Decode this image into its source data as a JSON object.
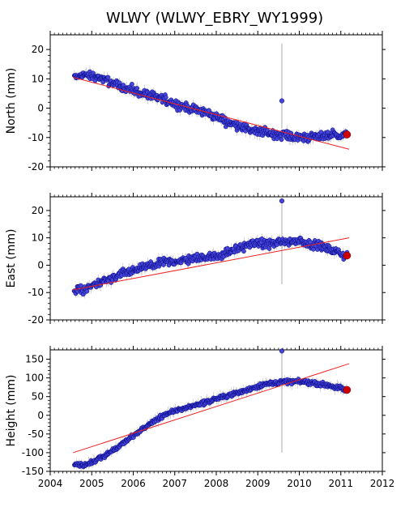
{
  "chart_data": {
    "type": "scatter",
    "title": "WLWY (WLWY_EBRY_WY1999)",
    "x_axis": {
      "range": [
        2004,
        2012
      ],
      "tick_labels": [
        "2004",
        "2005",
        "2006",
        "2007",
        "2008",
        "2009",
        "2010",
        "2011",
        "2012"
      ]
    },
    "colors": {
      "points": "#4646d8",
      "point_edge": "#000080",
      "trend": "#ee2222",
      "latest": "#cc0000",
      "error_bars": "#999999",
      "outlier_bar": "#aaaaaa"
    },
    "panels": [
      {
        "ylabel": "North (mm)",
        "ylim": [
          -20,
          25
        ],
        "yticks": [
          -20,
          -10,
          0,
          10,
          20
        ],
        "tick_labels": [
          "-20",
          "-10",
          "0",
          "10",
          "20"
        ],
        "series_points": [
          [
            2004.58,
            10.5
          ],
          [
            2004.8,
            11.5
          ],
          [
            2005.0,
            11.0
          ],
          [
            2005.25,
            10.0
          ],
          [
            2005.5,
            8.5
          ],
          [
            2005.75,
            7.5
          ],
          [
            2006.0,
            6.0
          ],
          [
            2006.25,
            5.0
          ],
          [
            2006.5,
            4.0
          ],
          [
            2006.75,
            3.0
          ],
          [
            2007.0,
            1.5
          ],
          [
            2007.25,
            0.5
          ],
          [
            2007.5,
            -0.5
          ],
          [
            2007.75,
            -1.5
          ],
          [
            2008.0,
            -3.0
          ],
          [
            2008.25,
            -4.5
          ],
          [
            2008.5,
            -5.5
          ],
          [
            2008.75,
            -7.0
          ],
          [
            2009.0,
            -8.0
          ],
          [
            2009.25,
            -8.5
          ],
          [
            2009.5,
            -9.0
          ],
          [
            2009.75,
            -9.5
          ],
          [
            2010.0,
            -10.0
          ],
          [
            2010.25,
            -10.0
          ],
          [
            2010.5,
            -9.5
          ],
          [
            2010.75,
            -9.0
          ],
          [
            2011.0,
            -9.0
          ],
          [
            2011.15,
            -9.0
          ]
        ],
        "trend": {
          "x": [
            2004.55,
            2011.2
          ],
          "y": [
            10.5,
            -14.0
          ]
        },
        "latest": {
          "x": 2011.15,
          "y": -9.0
        },
        "outlier": {
          "x": 2009.58,
          "y": 2.5,
          "bar": [
            -7,
            22
          ]
        },
        "noise": 1.3
      },
      {
        "ylabel": "East (mm)",
        "ylim": [
          -20,
          25
        ],
        "yticks": [
          -20,
          -10,
          0,
          10,
          20
        ],
        "tick_labels": [
          "-20",
          "-10",
          "0",
          "10",
          "20"
        ],
        "series_points": [
          [
            2004.58,
            -9.0
          ],
          [
            2004.8,
            -9.0
          ],
          [
            2005.0,
            -7.5
          ],
          [
            2005.25,
            -6.0
          ],
          [
            2005.5,
            -5.0
          ],
          [
            2005.75,
            -3.0
          ],
          [
            2006.0,
            -2.0
          ],
          [
            2006.25,
            -1.0
          ],
          [
            2006.5,
            0.0
          ],
          [
            2006.75,
            1.0
          ],
          [
            2007.0,
            1.5
          ],
          [
            2007.25,
            2.0
          ],
          [
            2007.5,
            2.5
          ],
          [
            2007.75,
            3.0
          ],
          [
            2008.0,
            3.5
          ],
          [
            2008.25,
            4.5
          ],
          [
            2008.5,
            6.0
          ],
          [
            2008.75,
            7.5
          ],
          [
            2009.0,
            8.0
          ],
          [
            2009.25,
            8.0
          ],
          [
            2009.5,
            8.5
          ],
          [
            2009.75,
            8.5
          ],
          [
            2010.0,
            9.0
          ],
          [
            2010.25,
            8.0
          ],
          [
            2010.5,
            7.0
          ],
          [
            2010.75,
            5.5
          ],
          [
            2011.0,
            4.0
          ],
          [
            2011.15,
            3.5
          ]
        ],
        "trend": {
          "x": [
            2004.55,
            2011.2
          ],
          "y": [
            -9.0,
            10.0
          ]
        },
        "latest": {
          "x": 2011.15,
          "y": 3.5
        },
        "outlier": {
          "x": 2009.58,
          "y": 23.5,
          "bar": [
            -7,
            24
          ]
        },
        "noise": 1.3
      },
      {
        "ylabel": "Height (mm)",
        "ylim": [
          -150,
          175
        ],
        "yticks": [
          -150,
          -100,
          -50,
          0,
          50,
          100,
          150
        ],
        "tick_labels": [
          "-150",
          "-100",
          "-50",
          "0",
          "50",
          "100",
          "150"
        ],
        "series_points": [
          [
            2004.58,
            -130
          ],
          [
            2004.8,
            -135
          ],
          [
            2005.0,
            -125
          ],
          [
            2005.25,
            -110
          ],
          [
            2005.5,
            -95
          ],
          [
            2005.75,
            -75
          ],
          [
            2006.0,
            -55
          ],
          [
            2006.25,
            -35
          ],
          [
            2006.5,
            -15
          ],
          [
            2006.75,
            0
          ],
          [
            2007.0,
            12
          ],
          [
            2007.25,
            20
          ],
          [
            2007.5,
            28
          ],
          [
            2007.75,
            35
          ],
          [
            2008.0,
            45
          ],
          [
            2008.25,
            52
          ],
          [
            2008.5,
            60
          ],
          [
            2008.75,
            68
          ],
          [
            2009.0,
            78
          ],
          [
            2009.25,
            85
          ],
          [
            2009.5,
            88
          ],
          [
            2009.75,
            90
          ],
          [
            2010.0,
            90
          ],
          [
            2010.25,
            88
          ],
          [
            2010.5,
            84
          ],
          [
            2010.75,
            78
          ],
          [
            2011.0,
            72
          ],
          [
            2011.15,
            68
          ]
        ],
        "trend": {
          "x": [
            2004.55,
            2011.2
          ],
          "y": [
            -100,
            138
          ]
        },
        "latest": {
          "x": 2011.15,
          "y": 68
        },
        "outlier": {
          "x": 2009.58,
          "y": 172,
          "bar": [
            -100,
            172
          ]
        },
        "noise": 5
      }
    ]
  }
}
